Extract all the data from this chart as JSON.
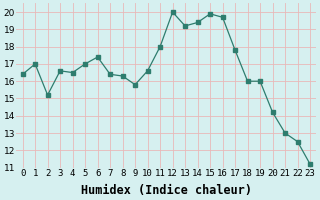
{
  "x": [
    0,
    1,
    2,
    3,
    4,
    5,
    6,
    7,
    8,
    9,
    10,
    11,
    12,
    13,
    14,
    15,
    16,
    17,
    18,
    19,
    20,
    21,
    22,
    23
  ],
  "y": [
    16.4,
    17.0,
    15.2,
    16.6,
    16.5,
    17.0,
    17.4,
    16.4,
    16.3,
    15.8,
    16.6,
    18.0,
    20.0,
    19.2,
    19.4,
    19.9,
    19.7,
    17.8,
    16.0,
    16.0,
    14.2,
    13.0,
    12.5,
    11.2
  ],
  "line_color": "#2e7d6e",
  "marker": "s",
  "marker_size": 2.2,
  "bg_color": "#d6f0f0",
  "grid_color": "#e8b8b8",
  "xlabel": "Humidex (Indice chaleur)",
  "ylim": [
    11,
    20.5
  ],
  "xlim": [
    -0.5,
    23.5
  ],
  "yticks": [
    11,
    12,
    13,
    14,
    15,
    16,
    17,
    18,
    19,
    20
  ],
  "xtick_labels": [
    "0",
    "1",
    "2",
    "3",
    "4",
    "5",
    "6",
    "7",
    "8",
    "9",
    "10",
    "11",
    "12",
    "13",
    "14",
    "15",
    "16",
    "17",
    "18",
    "19",
    "20",
    "21",
    "22",
    "23"
  ],
  "tick_fontsize": 6.5,
  "xlabel_fontsize": 8.5
}
